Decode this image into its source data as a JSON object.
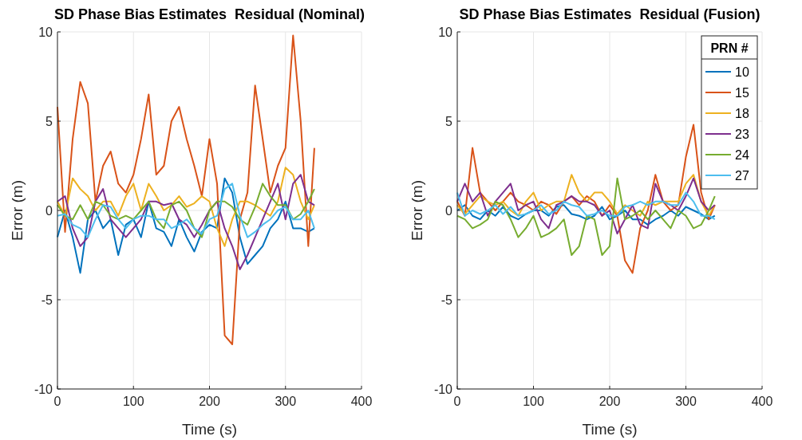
{
  "chart_data": [
    {
      "type": "line",
      "title": "SD Phase Bias Estimates  Residual (Nominal)",
      "xlabel": "Time (s)",
      "ylabel": "Error (m)",
      "xlim": [
        0,
        400
      ],
      "xticks": [
        0,
        100,
        200,
        300,
        400
      ],
      "ylim": [
        -10,
        10
      ],
      "yticks": [
        -10,
        -5,
        0,
        5,
        10
      ],
      "grid": true,
      "legend": false,
      "x": [
        0,
        10,
        20,
        30,
        40,
        50,
        60,
        70,
        80,
        90,
        100,
        110,
        120,
        130,
        140,
        150,
        160,
        170,
        180,
        190,
        200,
        210,
        220,
        230,
        240,
        250,
        260,
        270,
        280,
        290,
        300,
        310,
        320,
        330,
        338
      ],
      "series": [
        {
          "color": "#0072bd",
          "values": [
            -1.5,
            0,
            -1.5,
            -3.5,
            -0.5,
            0,
            -1,
            -0.5,
            -2.5,
            -0.8,
            -0.5,
            -1.5,
            0.5,
            -1,
            -1.2,
            -2,
            -0.5,
            -1.5,
            -2.3,
            -1.2,
            -0.8,
            -1,
            1.8,
            1,
            -1.5,
            -3,
            -2.5,
            -2,
            -1,
            -0.5,
            0.5,
            -1,
            -1,
            -1.2,
            -1
          ]
        },
        {
          "color": "#d95319",
          "values": [
            5.8,
            -1.2,
            4,
            7.2,
            6,
            0.5,
            2.5,
            3.3,
            1.5,
            1,
            2,
            4,
            6.5,
            2,
            2.5,
            5,
            5.8,
            4,
            2.5,
            0.8,
            4,
            1.5,
            -7,
            -7.5,
            -0.5,
            1,
            7,
            4,
            1,
            2.5,
            3.5,
            9.8,
            5,
            -2,
            3.5
          ]
        },
        {
          "color": "#edb120",
          "values": [
            0.5,
            -0.3,
            1.8,
            1.2,
            0.8,
            0,
            0.5,
            0.5,
            -0.3,
            0.8,
            1.5,
            0,
            1.5,
            0.8,
            0,
            0.3,
            0.8,
            0.2,
            0.4,
            0.8,
            0.5,
            -1,
            -2,
            -0.5,
            0.5,
            0.5,
            0.3,
            0,
            -0.3,
            0.5,
            2.4,
            2,
            0.5,
            -0.5,
            0.3
          ]
        },
        {
          "color": "#7e2f8e",
          "values": [
            0.5,
            0.8,
            -1,
            -2,
            -1.5,
            0.5,
            1.2,
            -0.5,
            -1,
            -1.5,
            -1,
            -0.5,
            0.5,
            0.5,
            0.3,
            0.4,
            -0.5,
            -0.8,
            -1.5,
            -0.8,
            0,
            0.5,
            -1,
            -2,
            -3.3,
            -2.5,
            -1.5,
            -0.5,
            0.5,
            1.5,
            -0.5,
            1.5,
            2,
            0.5,
            0.3
          ]
        },
        {
          "color": "#77ac30",
          "values": [
            0.3,
            -0.3,
            -0.5,
            0.3,
            -0.5,
            0.5,
            0.3,
            -0.3,
            -0.5,
            -0.3,
            -0.5,
            0,
            0.5,
            -0.5,
            -1,
            0.3,
            0.5,
            0,
            -1,
            -1.5,
            0,
            0.5,
            0.5,
            0.2,
            -0.5,
            -0.8,
            0.2,
            1.5,
            0.8,
            0.3,
            0.3,
            -0.5,
            -0.2,
            0.5,
            1.2
          ]
        },
        {
          "color": "#4dbeee",
          "values": [
            -0.3,
            -0.2,
            -0.8,
            -1,
            -1.5,
            -0.5,
            0.3,
            0.2,
            -0.5,
            -1,
            -0.5,
            -0.3,
            -0.3,
            -0.5,
            -0.5,
            -1,
            -0.8,
            -0.5,
            -1,
            -1.3,
            -0.5,
            -0.3,
            1.2,
            1.5,
            -0.3,
            -1.5,
            -1.2,
            -0.8,
            -0.5,
            0,
            0.2,
            -0.5,
            -0.5,
            0,
            -1
          ]
        }
      ]
    },
    {
      "type": "line",
      "title": "SD Phase Bias Estimates  Residual (Fusion)",
      "xlabel": "Time (s)",
      "ylabel": "Error (m)",
      "xlim": [
        0,
        400
      ],
      "xticks": [
        0,
        100,
        200,
        300,
        400
      ],
      "ylim": [
        -10,
        10
      ],
      "yticks": [
        -10,
        -5,
        0,
        5,
        10
      ],
      "grid": true,
      "legend": "top right",
      "legend_title": "PRN #",
      "x": [
        0,
        10,
        20,
        30,
        40,
        50,
        60,
        70,
        80,
        90,
        100,
        110,
        120,
        130,
        140,
        150,
        160,
        170,
        180,
        190,
        200,
        210,
        220,
        230,
        240,
        250,
        260,
        270,
        280,
        290,
        300,
        310,
        320,
        330,
        338
      ],
      "series": [
        {
          "name": "10",
          "color": "#0072bd",
          "values": [
            0,
            0.3,
            -0.3,
            -0.5,
            0,
            -0.3,
            0.2,
            -0.3,
            -0.5,
            -0.2,
            0,
            0,
            -0.3,
            0.2,
            0.3,
            -0.2,
            -0.3,
            -0.5,
            -0.3,
            0.2,
            -0.5,
            -0.3,
            0,
            -0.5,
            -0.5,
            -0.8,
            -0.5,
            -0.3,
            0,
            -0.3,
            0.2,
            0,
            -0.2,
            -0.5,
            -0.3
          ]
        },
        {
          "name": "15",
          "color": "#d95319",
          "values": [
            0.5,
            -0.3,
            3.5,
            1,
            0.5,
            0,
            0.5,
            1,
            0.5,
            0.3,
            0,
            0.5,
            0.3,
            -0.2,
            0.5,
            0.8,
            0.3,
            0.8,
            0.5,
            -0.3,
            0.3,
            -0.3,
            -2.8,
            -3.5,
            -1,
            0,
            2,
            0.5,
            0,
            0.3,
            3,
            4.8,
            1,
            -0.5,
            0.3
          ]
        },
        {
          "name": "18",
          "color": "#edb120",
          "values": [
            0.3,
            -0.2,
            0.3,
            0.8,
            0.5,
            0.3,
            0.5,
            0,
            -0.3,
            0.5,
            1,
            0,
            0.3,
            0.5,
            0.5,
            2,
            1,
            0.5,
            1,
            1,
            0.5,
            -0.2,
            0.3,
            0,
            -0.3,
            0.5,
            0.3,
            0.5,
            0.5,
            0.5,
            1.5,
            2,
            0.5,
            -0.3,
            0.3
          ]
        },
        {
          "name": "23",
          "color": "#7e2f8e",
          "values": [
            0.5,
            1.5,
            0.5,
            1,
            -0.3,
            0.5,
            1,
            1.5,
            0,
            0.3,
            0.5,
            -0.5,
            -1,
            0.3,
            0.5,
            0.8,
            0.5,
            0.5,
            0.3,
            -0.3,
            0,
            -1.3,
            -0.5,
            0.3,
            -0.8,
            -1,
            1.5,
            0.5,
            0.3,
            0,
            0.8,
            1.8,
            0.5,
            0,
            0.3
          ]
        },
        {
          "name": "24",
          "color": "#77ac30",
          "values": [
            -0.3,
            -0.5,
            -1,
            -0.8,
            -0.5,
            0.5,
            0.3,
            -0.5,
            -1.5,
            -1,
            -0.3,
            -1.5,
            -1.3,
            -1,
            -0.5,
            -2.5,
            -2,
            -0.3,
            -0.5,
            -2.5,
            -2,
            1.8,
            -0.5,
            -0.3,
            0,
            -0.5,
            0,
            -0.5,
            -1,
            0,
            -0.3,
            -1,
            -0.8,
            0,
            0.8
          ]
        },
        {
          "name": "27",
          "color": "#4dbeee",
          "values": [
            1,
            -0.3,
            0,
            -0.2,
            0,
            0.3,
            -0.2,
            0.2,
            -0.3,
            -0.2,
            0,
            0.3,
            -0.2,
            0,
            0.5,
            0.3,
            0.2,
            -0.3,
            -0.2,
            0,
            -0.3,
            -0.3,
            0.2,
            0.3,
            0.5,
            0.3,
            0.5,
            0.5,
            0.3,
            0.3,
            1,
            0.5,
            -0.3,
            -0.3,
            -0.5
          ]
        }
      ]
    }
  ]
}
